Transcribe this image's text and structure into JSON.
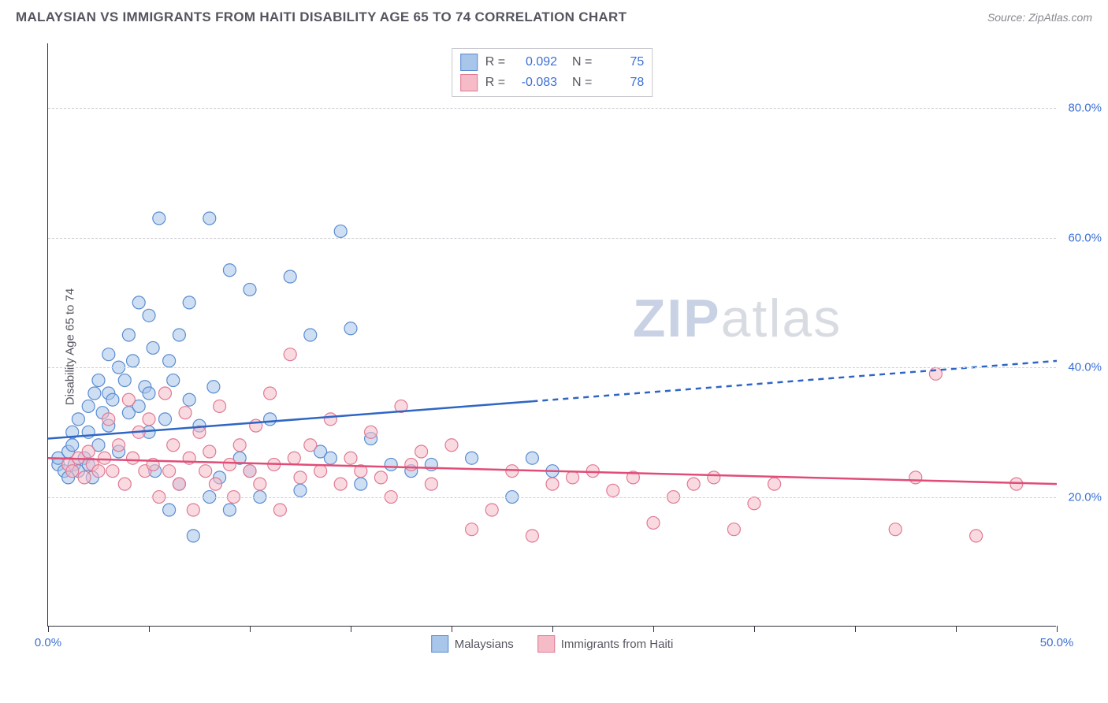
{
  "title": "MALAYSIAN VS IMMIGRANTS FROM HAITI DISABILITY AGE 65 TO 74 CORRELATION CHART",
  "source": "Source: ZipAtlas.com",
  "y_axis_label": "Disability Age 65 to 74",
  "watermark_bold": "ZIP",
  "watermark_rest": "atlas",
  "chart": {
    "type": "scatter",
    "xlim": [
      0,
      50
    ],
    "ylim": [
      0,
      90
    ],
    "x_ticks": [
      0,
      5,
      10,
      15,
      20,
      25,
      30,
      35,
      40,
      45,
      50
    ],
    "x_tick_labels": {
      "0": "0.0%",
      "50": "50.0%"
    },
    "y_ticks": [
      20,
      40,
      60,
      80
    ],
    "y_tick_labels": {
      "20": "20.0%",
      "40": "40.0%",
      "60": "60.0%",
      "80": "80.0%"
    },
    "grid_color": "#d0d0d6",
    "axis_color": "#333340",
    "background": "#ffffff",
    "marker_radius": 8,
    "marker_opacity": 0.55,
    "marker_stroke_width": 1.2,
    "series": [
      {
        "name": "Malaysians",
        "fill": "#a8c5ea",
        "stroke": "#5a8cd0",
        "R_label": "R =",
        "R": "0.092",
        "N_label": "N =",
        "N": "75",
        "trend": {
          "y_at_x0": 29,
          "y_at_x50": 41,
          "solid_until_x": 24,
          "color": "#2f66c4",
          "width": 2.5
        },
        "points": [
          [
            0.5,
            25
          ],
          [
            0.5,
            26
          ],
          [
            0.8,
            24
          ],
          [
            1,
            27
          ],
          [
            1,
            23
          ],
          [
            1.2,
            28
          ],
          [
            1.2,
            30
          ],
          [
            1.3,
            25
          ],
          [
            1.5,
            24
          ],
          [
            1.5,
            32
          ],
          [
            1.8,
            26
          ],
          [
            2,
            25
          ],
          [
            2,
            34
          ],
          [
            2,
            30
          ],
          [
            2.2,
            23
          ],
          [
            2.3,
            36
          ],
          [
            2.5,
            38
          ],
          [
            2.5,
            28
          ],
          [
            2.7,
            33
          ],
          [
            3,
            36
          ],
          [
            3,
            31
          ],
          [
            3,
            42
          ],
          [
            3.2,
            35
          ],
          [
            3.5,
            27
          ],
          [
            3.5,
            40
          ],
          [
            3.8,
            38
          ],
          [
            4,
            45
          ],
          [
            4,
            33
          ],
          [
            4.2,
            41
          ],
          [
            4.5,
            50
          ],
          [
            4.5,
            34
          ],
          [
            4.8,
            37
          ],
          [
            5,
            48
          ],
          [
            5,
            36
          ],
          [
            5,
            30
          ],
          [
            5.2,
            43
          ],
          [
            5.3,
            24
          ],
          [
            5.5,
            63
          ],
          [
            5.8,
            32
          ],
          [
            6,
            41
          ],
          [
            6,
            18
          ],
          [
            6.2,
            38
          ],
          [
            6.5,
            45
          ],
          [
            6.5,
            22
          ],
          [
            7,
            35
          ],
          [
            7,
            50
          ],
          [
            7.2,
            14
          ],
          [
            7.5,
            31
          ],
          [
            8,
            63
          ],
          [
            8,
            20
          ],
          [
            8.2,
            37
          ],
          [
            8.5,
            23
          ],
          [
            9,
            55
          ],
          [
            9,
            18
          ],
          [
            9.5,
            26
          ],
          [
            10,
            24
          ],
          [
            10,
            52
          ],
          [
            10.5,
            20
          ],
          [
            11,
            32
          ],
          [
            12,
            54
          ],
          [
            12.5,
            21
          ],
          [
            13,
            45
          ],
          [
            13.5,
            27
          ],
          [
            14,
            26
          ],
          [
            14.5,
            61
          ],
          [
            15,
            46
          ],
          [
            15.5,
            22
          ],
          [
            16,
            29
          ],
          [
            17,
            25
          ],
          [
            18,
            24
          ],
          [
            19,
            25
          ],
          [
            21,
            26
          ],
          [
            23,
            20
          ],
          [
            24,
            26
          ],
          [
            25,
            24
          ]
        ]
      },
      {
        "name": "Immigrants from Haiti",
        "fill": "#f5bcc8",
        "stroke": "#e07a94",
        "R_label": "R =",
        "R": "-0.083",
        "N_label": "N =",
        "N": "78",
        "trend": {
          "y_at_x0": 26,
          "y_at_x50": 22,
          "solid_until_x": 50,
          "color": "#e04d78",
          "width": 2.5
        },
        "points": [
          [
            1,
            25
          ],
          [
            1.2,
            24
          ],
          [
            1.5,
            26
          ],
          [
            1.8,
            23
          ],
          [
            2,
            27
          ],
          [
            2.2,
            25
          ],
          [
            2.5,
            24
          ],
          [
            2.8,
            26
          ],
          [
            3,
            32
          ],
          [
            3.2,
            24
          ],
          [
            3.5,
            28
          ],
          [
            3.8,
            22
          ],
          [
            4,
            35
          ],
          [
            4.2,
            26
          ],
          [
            4.5,
            30
          ],
          [
            4.8,
            24
          ],
          [
            5,
            32
          ],
          [
            5.2,
            25
          ],
          [
            5.5,
            20
          ],
          [
            5.8,
            36
          ],
          [
            6,
            24
          ],
          [
            6.2,
            28
          ],
          [
            6.5,
            22
          ],
          [
            6.8,
            33
          ],
          [
            7,
            26
          ],
          [
            7.2,
            18
          ],
          [
            7.5,
            30
          ],
          [
            7.8,
            24
          ],
          [
            8,
            27
          ],
          [
            8.3,
            22
          ],
          [
            8.5,
            34
          ],
          [
            9,
            25
          ],
          [
            9.2,
            20
          ],
          [
            9.5,
            28
          ],
          [
            10,
            24
          ],
          [
            10.3,
            31
          ],
          [
            10.5,
            22
          ],
          [
            11,
            36
          ],
          [
            11.2,
            25
          ],
          [
            11.5,
            18
          ],
          [
            12,
            42
          ],
          [
            12.2,
            26
          ],
          [
            12.5,
            23
          ],
          [
            13,
            28
          ],
          [
            13.5,
            24
          ],
          [
            14,
            32
          ],
          [
            14.5,
            22
          ],
          [
            15,
            26
          ],
          [
            15.5,
            24
          ],
          [
            16,
            30
          ],
          [
            16.5,
            23
          ],
          [
            17,
            20
          ],
          [
            17.5,
            34
          ],
          [
            18,
            25
          ],
          [
            18.5,
            27
          ],
          [
            19,
            22
          ],
          [
            20,
            28
          ],
          [
            21,
            15
          ],
          [
            22,
            18
          ],
          [
            23,
            24
          ],
          [
            24,
            14
          ],
          [
            25,
            22
          ],
          [
            26,
            23
          ],
          [
            27,
            24
          ],
          [
            28,
            21
          ],
          [
            29,
            23
          ],
          [
            30,
            16
          ],
          [
            31,
            20
          ],
          [
            32,
            22
          ],
          [
            33,
            23
          ],
          [
            34,
            15
          ],
          [
            35,
            19
          ],
          [
            36,
            22
          ],
          [
            42,
            15
          ],
          [
            43,
            23
          ],
          [
            44,
            39
          ],
          [
            46,
            14
          ],
          [
            48,
            22
          ]
        ]
      }
    ]
  }
}
